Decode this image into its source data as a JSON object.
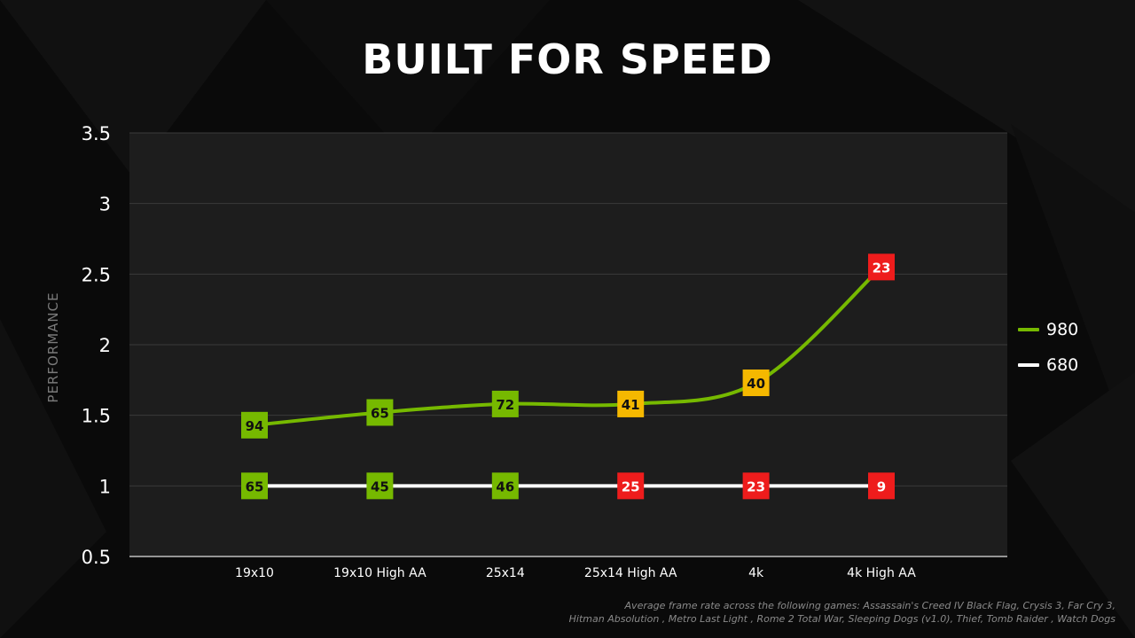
{
  "title": "BUILT FOR SPEED",
  "footnote": {
    "line1": "Average frame rate across the following games: Assassain's Creed IV Black Flag, Crysis 3, Far Cry 3,",
    "line2": "Hitman Absolution , Metro Last Light , Rome 2 Total War, Sleeping Dogs (v1.0), Thief, Tomb Raider , Watch Dogs"
  },
  "colors": {
    "background": "#0a0a0a",
    "plot_background": "#1d1d1d",
    "gridline": "#3a3a3a",
    "green": "#76b900",
    "yellow": "#f5b800",
    "red": "#ee1c1c",
    "white": "#ffffff"
  },
  "chart_data": {
    "type": "line",
    "title": "",
    "xlabel": "",
    "ylabel": "PERFORMANCE",
    "ylim": [
      0.5,
      3.5
    ],
    "yticks": [
      "0.5",
      "1",
      "1.5",
      "2",
      "2.5",
      "3",
      "3.5"
    ],
    "grid": true,
    "legend_position": "right",
    "categories": [
      "19x10",
      "19x10 High AA",
      "25x14",
      "25x14 High AA",
      "4k",
      "4k High AA"
    ],
    "series": [
      {
        "name": "980",
        "line_color": "#76b900",
        "values": [
          1.43,
          1.52,
          1.58,
          1.58,
          1.73,
          2.55
        ],
        "labels": [
          "94",
          "65",
          "72",
          "41",
          "40",
          "23"
        ],
        "marker_colors": [
          "green",
          "green",
          "green",
          "yellow",
          "yellow",
          "red"
        ]
      },
      {
        "name": "680",
        "line_color": "#ffffff",
        "values": [
          1,
          1,
          1,
          1,
          1,
          1
        ],
        "labels": [
          "65",
          "45",
          "46",
          "25",
          "23",
          "9"
        ],
        "marker_colors": [
          "green",
          "green",
          "green",
          "red",
          "red",
          "red"
        ]
      }
    ]
  }
}
